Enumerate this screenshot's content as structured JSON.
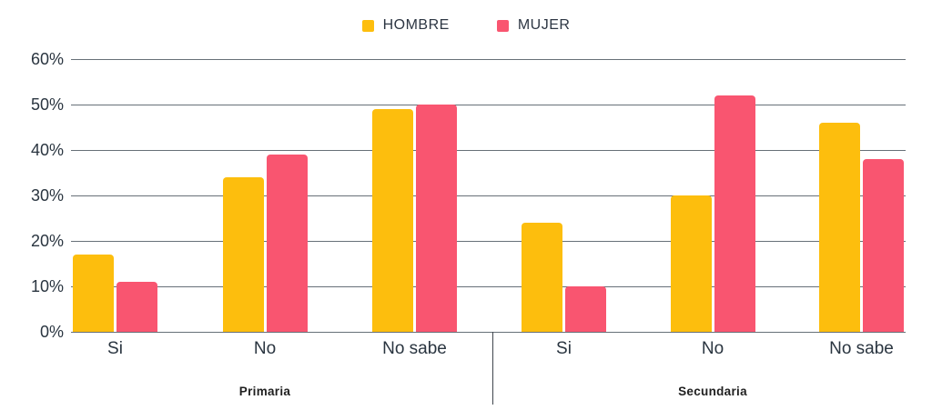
{
  "legend": {
    "items": [
      {
        "label": "HOMBRE",
        "color": "#FDBE0D",
        "icon": "square-swatch"
      },
      {
        "label": "MUJER",
        "color": "#F95570",
        "icon": "square-swatch"
      }
    ]
  },
  "chart_data": {
    "type": "bar",
    "title": "",
    "xlabel": "",
    "ylabel": "",
    "ylim": [
      0,
      60
    ],
    "grid": true,
    "legend_position": "top-center",
    "y_ticks": [
      "0%",
      "10%",
      "20%",
      "30%",
      "40%",
      "50%",
      "60%"
    ],
    "groups": [
      {
        "label": "Primaria",
        "categories": [
          "Si",
          "No",
          "No sabe"
        ]
      },
      {
        "label": "Secundaria",
        "categories": [
          "Si",
          "No",
          "No sabe"
        ]
      }
    ],
    "series": [
      {
        "name": "HOMBRE",
        "color": "#FDBE0D",
        "values": [
          [
            17,
            34,
            49
          ],
          [
            24,
            30,
            46
          ]
        ]
      },
      {
        "name": "MUJER",
        "color": "#F95570",
        "values": [
          [
            11,
            39,
            50
          ],
          [
            10,
            52,
            38
          ]
        ]
      }
    ],
    "colors": {
      "grid": "#677078",
      "text": "#2a3540",
      "divider": "#3f464d"
    }
  }
}
